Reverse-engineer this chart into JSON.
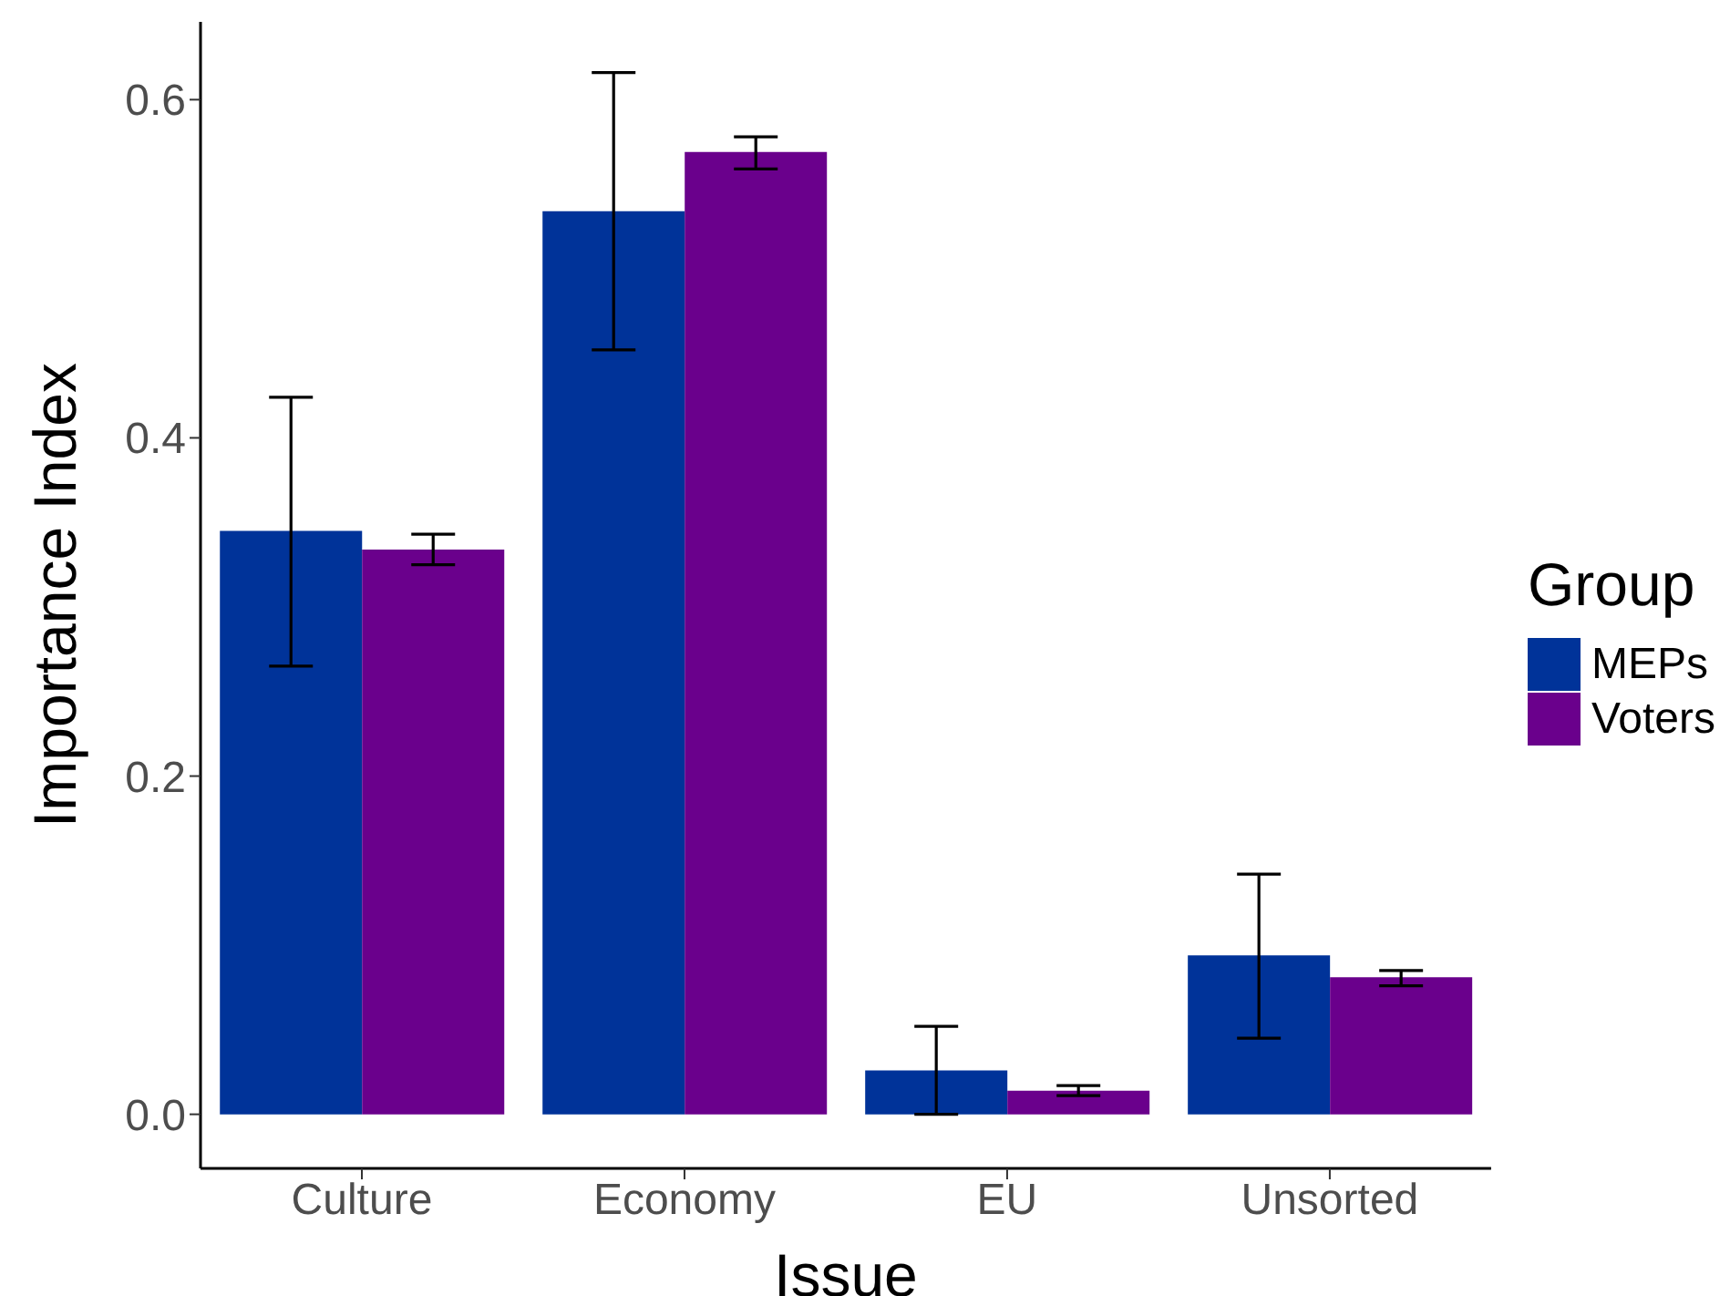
{
  "chart_data": {
    "type": "bar",
    "xlabel": "Issue",
    "ylabel": "Importance Index",
    "legend_title": "Group",
    "legend": "right",
    "grid": false,
    "categories": [
      "Culture",
      "Economy",
      "EU",
      "Unsorted"
    ],
    "series": [
      {
        "name": "MEPs",
        "color": "#003399",
        "values": [
          0.345,
          0.534,
          0.026,
          0.094
        ],
        "errors": [
          [
            0.265,
            0.424
          ],
          [
            0.452,
            0.616
          ],
          [
            0.0,
            0.052
          ],
          [
            0.045,
            0.142
          ]
        ]
      },
      {
        "name": "Voters",
        "color": "#6a008c",
        "values": [
          0.334,
          0.569,
          0.014,
          0.081
        ],
        "errors": [
          [
            0.325,
            0.343
          ],
          [
            0.559,
            0.578
          ],
          [
            0.011,
            0.017
          ],
          [
            0.076,
            0.085
          ]
        ]
      }
    ],
    "ylim": [
      -0.032,
      0.646
    ],
    "yticks": [
      {
        "value": 0,
        "label": "0.0"
      },
      {
        "value": 0.2,
        "label": "0.2"
      },
      {
        "value": 0.4,
        "label": "0.4"
      },
      {
        "value": 0.6,
        "label": "0.6"
      }
    ]
  }
}
